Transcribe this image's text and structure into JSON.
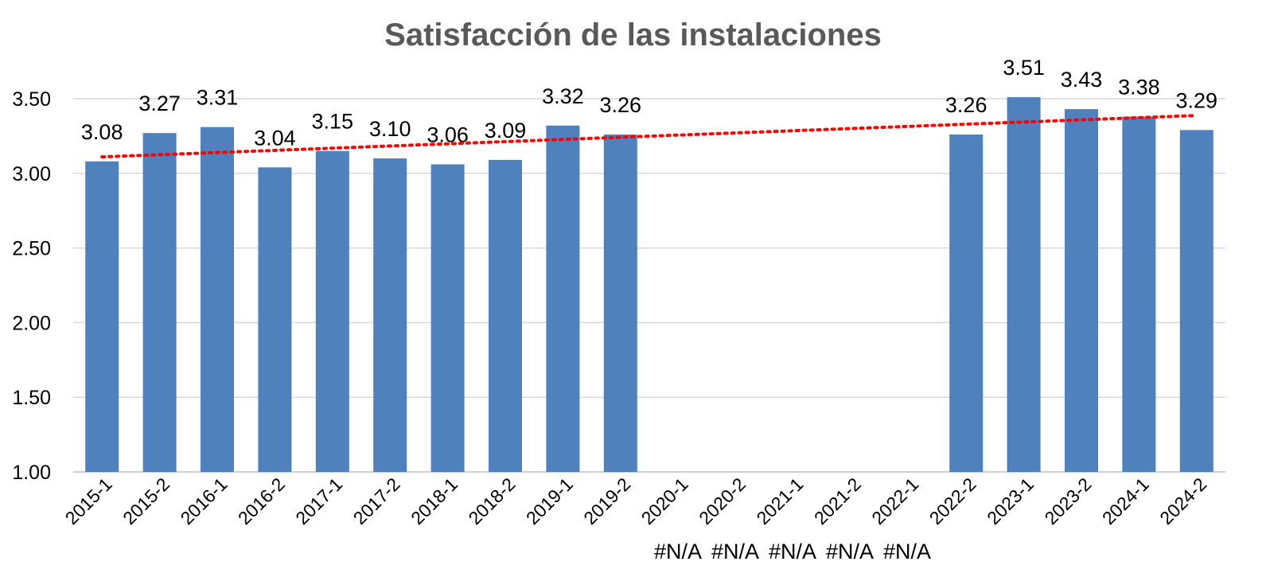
{
  "chart_data": {
    "type": "bar",
    "title": "Satisfacción de las instalaciones",
    "categories": [
      "2015-1",
      "2015-2",
      "2016-1",
      "2016-2",
      "2017-1",
      "2017-2",
      "2018-1",
      "2018-2",
      "2019-1",
      "2019-2",
      "2020-1",
      "2020-2",
      "2021-1",
      "2021-2",
      "2022-1",
      "2022-2",
      "2023-1",
      "2023-2",
      "2024-1",
      "2024-2"
    ],
    "series": [
      {
        "values": [
          3.08,
          3.27,
          3.31,
          3.04,
          3.15,
          3.1,
          3.06,
          3.09,
          3.32,
          3.26,
          null,
          null,
          null,
          null,
          null,
          3.26,
          3.51,
          3.43,
          3.38,
          3.29
        ],
        "data_labels": [
          "3.08",
          "3.27",
          "3.31",
          "3.04",
          "3.15",
          "3.10",
          "3.06",
          "3.09",
          "3.32",
          "3.26",
          "#N/A",
          "#N/A",
          "#N/A",
          "#N/A",
          "#N/A",
          "3.26",
          "3.51",
          "3.43",
          "3.38",
          "3.29"
        ]
      }
    ],
    "trendline": {
      "type": "linear",
      "style": "dotted",
      "color": "#ff0000"
    },
    "ylim": [
      1.0,
      3.5
    ],
    "yticks": [
      "1.00",
      "1.50",
      "2.00",
      "2.50",
      "3.00",
      "3.50"
    ],
    "grid": true,
    "bar_color": "#4f81bd",
    "xlabel": "",
    "ylabel": ""
  }
}
